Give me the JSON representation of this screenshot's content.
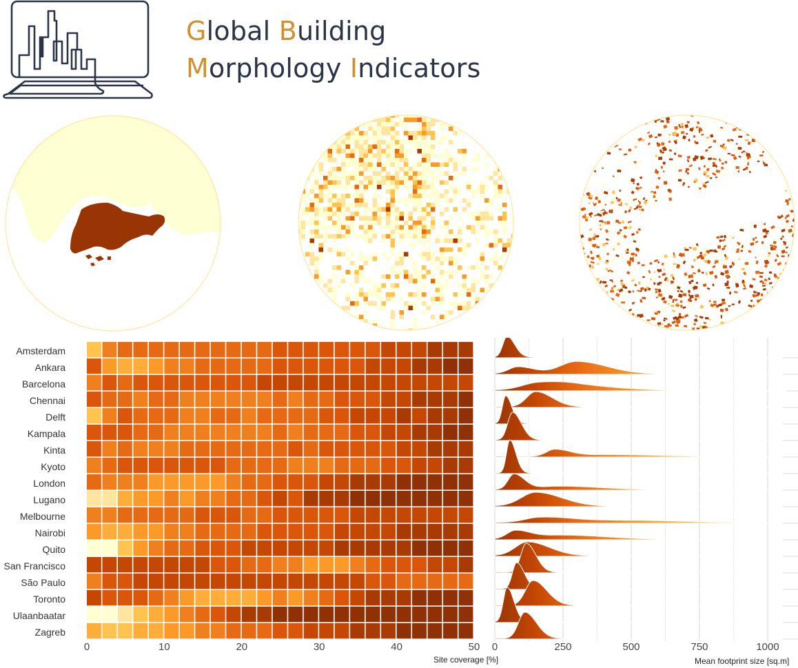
{
  "header": {
    "title_line1": [
      {
        "t": "G",
        "accent": true
      },
      {
        "t": "lobal ",
        "accent": false
      },
      {
        "t": "B",
        "accent": true
      },
      {
        "t": "uilding",
        "accent": false
      }
    ],
    "title_line2": [
      {
        "t": "M",
        "accent": true
      },
      {
        "t": "orphology ",
        "accent": false
      },
      {
        "t": "I",
        "accent": true
      },
      {
        "t": "ndicators",
        "accent": false
      }
    ],
    "logo_icon": "city-skyline-laptop-icon",
    "accent_color": "#d28f2d",
    "text_color": "#2b3447"
  },
  "maps": [
    {
      "name": "country-scale-map",
      "description": "Singapore island shaded dark brown, neighbouring land pale yellow"
    },
    {
      "name": "grid-scale-map",
      "description": "Gridded coverage cells in yellow-orange-brown"
    },
    {
      "name": "building-scale-map",
      "description": "Building footprints coloured yellow-orange-brown"
    }
  ],
  "palette": [
    "#ffffd4",
    "#fee6a0",
    "#fec44f",
    "#feac3a",
    "#fb9a29",
    "#f0801e",
    "#e66a14",
    "#d9560b",
    "#c44704",
    "#a83a04",
    "#8f3104"
  ],
  "chart_data": [
    {
      "type": "heatmap",
      "title": "",
      "xlabel": "Site coverage [%]",
      "ylabel": "",
      "x_ticks": [
        "0",
        "10",
        "20",
        "30",
        "40",
        "50"
      ],
      "xlim": [
        0,
        50
      ],
      "bin_width": 2,
      "categories": [
        "Amsterdam",
        "Ankara",
        "Barcelona",
        "Chennai",
        "Delft",
        "Kampala",
        "Kinta",
        "Kyoto",
        "London",
        "Lugano",
        "Melbourne",
        "Nairobi",
        "Quito",
        "San Francisco",
        "São Paulo",
        "Toronto",
        "Ulaanbaatar",
        "Zagreb"
      ],
      "value_scale": "quantized color level 0 (lightest) to 10 (darkest)",
      "values": [
        [
          2,
          5,
          6,
          6,
          6,
          6,
          6,
          6,
          6,
          6,
          6,
          6,
          7,
          7,
          7,
          7,
          7,
          7,
          7,
          8,
          8,
          8,
          9,
          9,
          9
        ],
        [
          7,
          4,
          3,
          3,
          4,
          5,
          5,
          6,
          6,
          6,
          6,
          6,
          7,
          7,
          7,
          7,
          7,
          7,
          8,
          8,
          8,
          9,
          9,
          10,
          10
        ],
        [
          5,
          7,
          6,
          7,
          7,
          7,
          7,
          7,
          7,
          7,
          7,
          8,
          8,
          8,
          8,
          8,
          8,
          8,
          8,
          8,
          8,
          8,
          8,
          8,
          8
        ],
        [
          7,
          6,
          6,
          5,
          6,
          6,
          5,
          5,
          5,
          5,
          5,
          5,
          6,
          5,
          6,
          6,
          7,
          7,
          7,
          8,
          8,
          9,
          9,
          9,
          10
        ],
        [
          2,
          5,
          7,
          6,
          6,
          6,
          5,
          5,
          6,
          6,
          5,
          6,
          6,
          6,
          6,
          7,
          7,
          8,
          8,
          8,
          9,
          8,
          9,
          9,
          10
        ],
        [
          7,
          7,
          7,
          6,
          6,
          5,
          5,
          5,
          5,
          5,
          5,
          5,
          6,
          5,
          6,
          6,
          6,
          7,
          7,
          8,
          8,
          9,
          9,
          10,
          10
        ],
        [
          7,
          5,
          6,
          5,
          5,
          5,
          6,
          6,
          6,
          6,
          6,
          6,
          6,
          7,
          6,
          7,
          7,
          7,
          7,
          7,
          8,
          8,
          9,
          9,
          9
        ],
        [
          5,
          6,
          7,
          7,
          7,
          7,
          7,
          7,
          7,
          6,
          6,
          6,
          6,
          5,
          5,
          5,
          6,
          6,
          6,
          7,
          7,
          8,
          8,
          9,
          9
        ],
        [
          6,
          5,
          5,
          5,
          4,
          4,
          4,
          4,
          4,
          5,
          6,
          6,
          7,
          7,
          7,
          8,
          8,
          9,
          9,
          9,
          10,
          10,
          10,
          10,
          10
        ],
        [
          1,
          1,
          3,
          4,
          4,
          5,
          4,
          5,
          5,
          6,
          6,
          7,
          8,
          7,
          9,
          9,
          9,
          10,
          10,
          10,
          10,
          10,
          10,
          10,
          10
        ],
        [
          5,
          5,
          6,
          6,
          6,
          6,
          6,
          7,
          7,
          7,
          6,
          6,
          7,
          7,
          7,
          7,
          7,
          8,
          8,
          8,
          8,
          8,
          8,
          8,
          8
        ],
        [
          4,
          3,
          3,
          4,
          4,
          5,
          5,
          6,
          6,
          6,
          6,
          7,
          7,
          7,
          7,
          7,
          8,
          8,
          8,
          8,
          9,
          9,
          9,
          9,
          9
        ],
        [
          0,
          0,
          2,
          4,
          5,
          6,
          6,
          7,
          7,
          7,
          8,
          8,
          8,
          8,
          8,
          8,
          9,
          9,
          9,
          9,
          9,
          10,
          10,
          10,
          10
        ],
        [
          8,
          8,
          8,
          8,
          8,
          8,
          8,
          8,
          7,
          7,
          6,
          6,
          5,
          5,
          4,
          4,
          4,
          5,
          6,
          7,
          7,
          7,
          8,
          8,
          9
        ],
        [
          5,
          7,
          7,
          8,
          8,
          8,
          8,
          8,
          8,
          8,
          8,
          8,
          8,
          8,
          8,
          8,
          8,
          8,
          7,
          7,
          6,
          6,
          6,
          6,
          6
        ],
        [
          8,
          7,
          7,
          7,
          6,
          5,
          4,
          3,
          3,
          3,
          3,
          4,
          5,
          4,
          5,
          6,
          7,
          8,
          9,
          9,
          9,
          10,
          10,
          10,
          10
        ],
        [
          0,
          0,
          1,
          2,
          3,
          4,
          5,
          6,
          7,
          8,
          9,
          9,
          10,
          10,
          10,
          10,
          10,
          10,
          10,
          10,
          10,
          10,
          10,
          10,
          10
        ],
        [
          3,
          2,
          2,
          3,
          3,
          4,
          4,
          5,
          5,
          6,
          6,
          6,
          7,
          7,
          8,
          8,
          8,
          9,
          9,
          9,
          10,
          10,
          10,
          10,
          10
        ]
      ]
    },
    {
      "type": "area",
      "subtype": "ridgeline",
      "title": "",
      "xlabel": "Mean footprint size [sq.m]",
      "ylabel": "",
      "x_ticks": [
        "0",
        "250",
        "500",
        "750",
        "1000"
      ],
      "xlim": [
        0,
        1000
      ],
      "grid": true,
      "categories": [
        "Amsterdam",
        "Ankara",
        "Barcelona",
        "Chennai",
        "Delft",
        "Kampala",
        "Kinta",
        "Kyoto",
        "London",
        "Lugano",
        "Melbourne",
        "Nairobi",
        "Quito",
        "San Francisco",
        "São Paulo",
        "Toronto",
        "Ulaanbaatar",
        "Zagreb"
      ],
      "series": [
        {
          "name": "Amsterdam",
          "peaks": [
            [
              45,
              30,
              28
            ]
          ],
          "tail_end": 1000
        },
        {
          "name": "Ankara",
          "peaks": [
            [
              85,
              10,
              60
            ],
            [
              300,
              18,
              110
            ]
          ],
          "tail_end": 1000
        },
        {
          "name": "Barcelona",
          "peaks": [
            [
              160,
              10,
              110
            ],
            [
              300,
              6,
              160
            ]
          ],
          "tail_end": 1040
        },
        {
          "name": "Chennai",
          "peaks": [
            [
              150,
              22,
              60
            ]
          ],
          "tail_end": 1000
        },
        {
          "name": "Delft",
          "peaks": [
            [
              40,
              40,
              22
            ]
          ],
          "tail_end": 1000
        },
        {
          "name": "Kampala",
          "peaks": [
            [
              65,
              40,
              32
            ]
          ],
          "tail_end": 1000
        },
        {
          "name": "Kinta",
          "peaks": [
            [
              220,
              10,
              55
            ],
            [
              420,
              3,
              200
            ]
          ],
          "tail_end": 1000
        },
        {
          "name": "Kyoto",
          "peaks": [
            [
              55,
              48,
              22
            ]
          ],
          "tail_end": 1000
        },
        {
          "name": "London",
          "peaks": [
            [
              70,
              22,
              38
            ],
            [
              240,
              5,
              150
            ]
          ],
          "tail_end": 980
        },
        {
          "name": "Lugano",
          "peaks": [
            [
              150,
              20,
              95
            ]
          ],
          "tail_end": 900
        },
        {
          "name": "Melbourne",
          "peaks": [
            [
              160,
              6,
              90
            ],
            [
              300,
              4,
              200
            ],
            [
              600,
              2,
              200
            ]
          ],
          "tail_end": 1000
        },
        {
          "name": "Nairobi",
          "peaks": [
            [
              75,
              12,
              55
            ],
            [
              250,
              6,
              160
            ]
          ],
          "tail_end": 960
        },
        {
          "name": "Quito",
          "peaks": [
            [
              120,
              20,
              80
            ]
          ],
          "tail_end": 960
        },
        {
          "name": "San Francisco",
          "peaks": [
            [
              115,
              42,
              35
            ]
          ],
          "tail_end": 960
        },
        {
          "name": "São Paulo",
          "peaks": [
            [
              80,
              38,
              28
            ]
          ],
          "tail_end": 960
        },
        {
          "name": "Toronto",
          "peaks": [
            [
              140,
              36,
              50
            ]
          ],
          "tail_end": 960
        },
        {
          "name": "Ulaanbaatar",
          "peaks": [
            [
              45,
              50,
              25
            ]
          ],
          "tail_end": 960
        },
        {
          "name": "Zagreb",
          "peaks": [
            [
              110,
              38,
              42
            ]
          ],
          "tail_end": 960
        }
      ],
      "peak_format": "[center_sqm, height_px, width_sqm]"
    }
  ]
}
